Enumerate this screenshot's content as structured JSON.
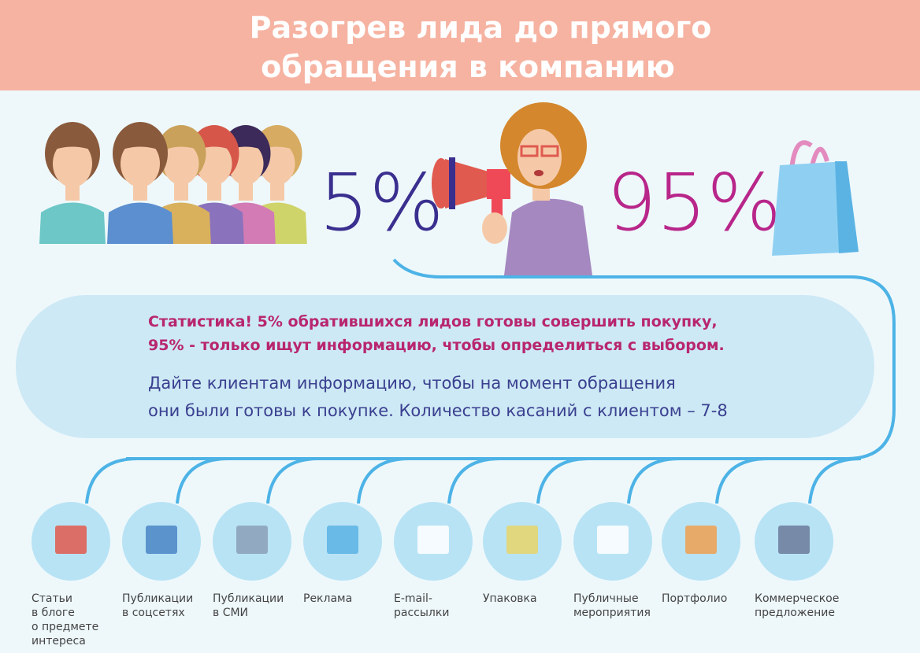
{
  "header": {
    "title_lines": [
      "Разогрев лида до прямого",
      "обращения в компанию"
    ]
  },
  "stats": {
    "left_percent": "5%",
    "right_percent": "95%"
  },
  "info": {
    "highlight_lines": [
      "Статистика! 5% обратившихся лидов готовы совершить покупку,",
      "95% - только ищут информацию, чтобы определиться с выбором."
    ],
    "body_lines": [
      "Дайте клиентам информацию, чтобы на момент обращения",
      "они были готовы к покупке. Количество касаний с клиентом – 7-8"
    ]
  },
  "channels": [
    {
      "label_lines": [
        "Статьи",
        "в блоге",
        "о предмете",
        "интереса"
      ]
    },
    {
      "label_lines": [
        "Публикации",
        "в соцсетях"
      ]
    },
    {
      "label_lines": [
        "Публикации",
        "в СМИ"
      ]
    },
    {
      "label_lines": [
        "Реклама"
      ]
    },
    {
      "label_lines": [
        "E-mail-",
        "рассылки"
      ]
    },
    {
      "label_lines": [
        "Упаковка"
      ]
    },
    {
      "label_lines": [
        "Публичные",
        "мероприятия"
      ]
    },
    {
      "label_lines": [
        "Портфолио"
      ]
    },
    {
      "label_lines": [
        "Коммерческое",
        "предложение"
      ]
    }
  ]
}
